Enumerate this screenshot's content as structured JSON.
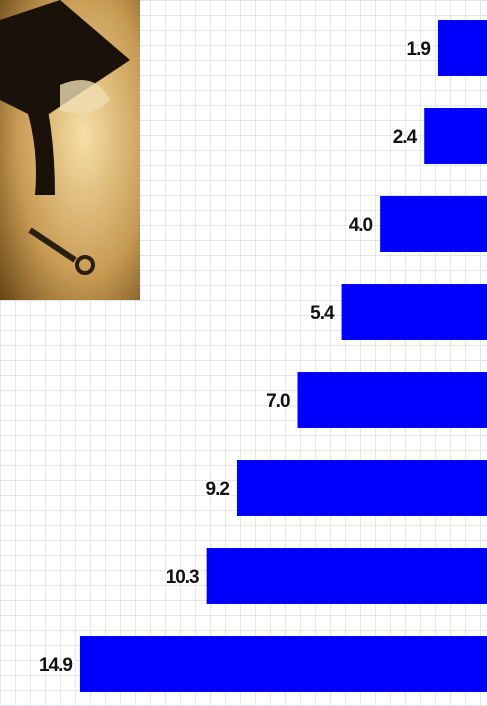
{
  "chart_data": {
    "type": "bar",
    "orientation": "horizontal",
    "values": [
      1.9,
      2.4,
      4.0,
      5.4,
      7.0,
      9.2,
      10.3,
      14.9
    ],
    "value_labels": [
      "1.9",
      "2.4",
      "4.0",
      "5.4",
      "7.0",
      "9.2",
      "10.3",
      "14.9"
    ],
    "color": "#0000ff"
  }
}
